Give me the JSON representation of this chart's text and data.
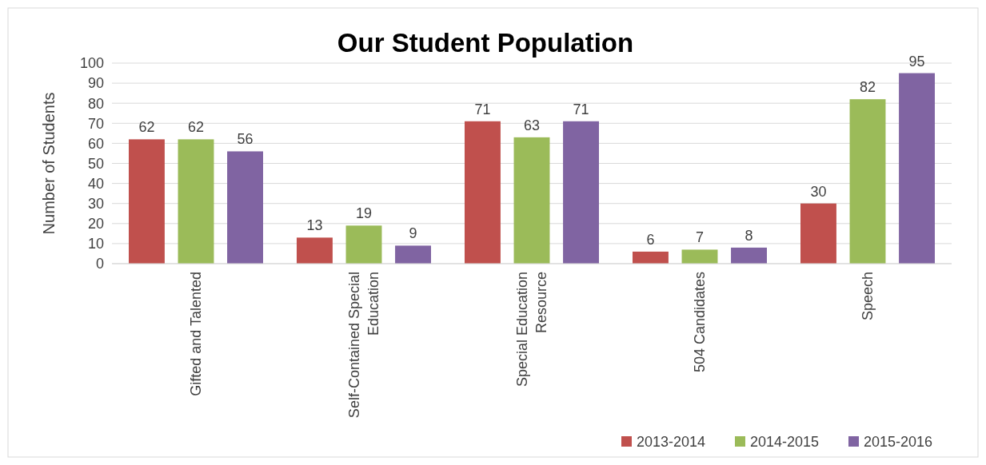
{
  "chart_data": {
    "type": "bar",
    "title": "Our Student Population",
    "ylabel": "Number of Students",
    "categories": [
      "Gifted and Talented",
      "Self-Contained Special Education",
      "Special Education Resource",
      "504 Candidates",
      "Speech"
    ],
    "series": [
      {
        "name": "2013-2014",
        "color": "#c0504d",
        "values": [
          62,
          13,
          71,
          6,
          30
        ]
      },
      {
        "name": "2014-2015",
        "color": "#9bbb59",
        "values": [
          62,
          19,
          63,
          7,
          82
        ]
      },
      {
        "name": "2015-2016",
        "color": "#8064a2",
        "values": [
          56,
          9,
          71,
          8,
          95
        ]
      }
    ],
    "ylim": [
      0,
      100
    ],
    "yticks": [
      0,
      10,
      20,
      30,
      40,
      50,
      60,
      70,
      80,
      90,
      100
    ],
    "grid": "y",
    "legend": "bottom right",
    "data_labels": true
  }
}
